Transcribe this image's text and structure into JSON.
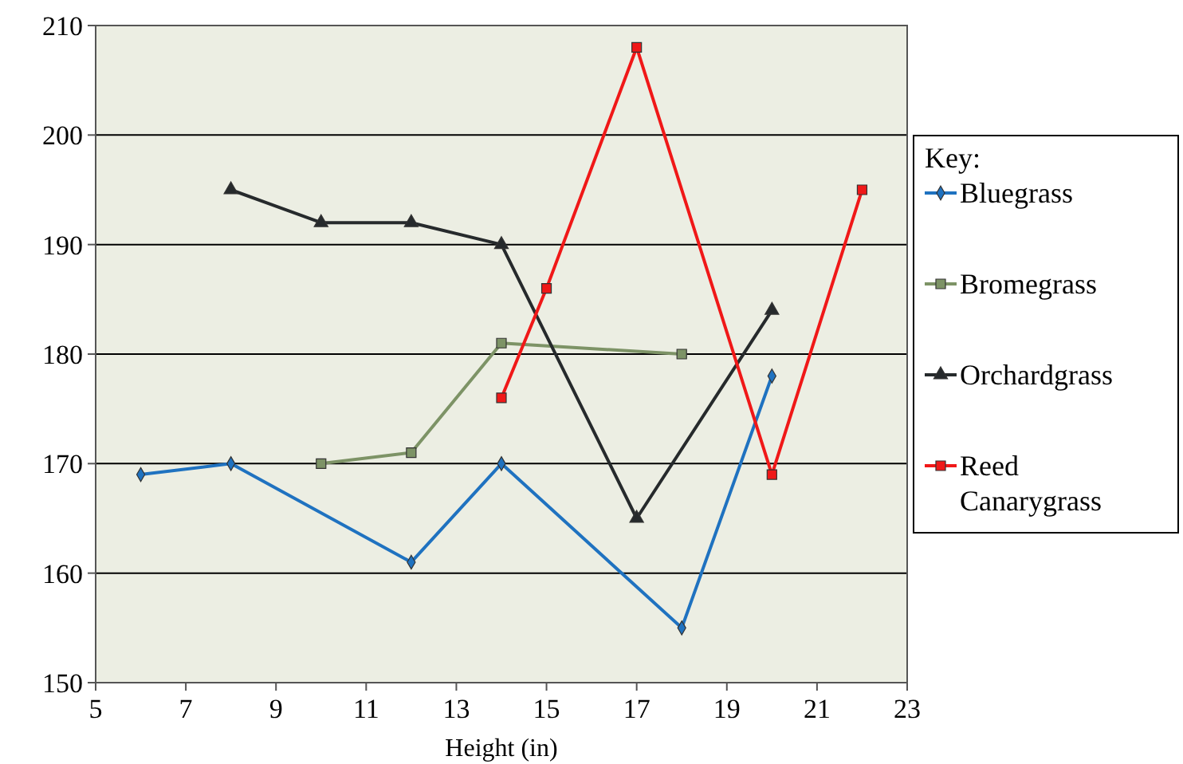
{
  "chart_data": {
    "type": "line",
    "xlabel": "Height (in)",
    "legend_title": "Key:",
    "legend": "right",
    "grid": "y",
    "xlim": [
      5,
      23
    ],
    "xticks": [
      5,
      7,
      9,
      11,
      13,
      15,
      17,
      19,
      21,
      23
    ],
    "ylim": [
      150,
      210
    ],
    "yticks": [
      150,
      160,
      170,
      180,
      190,
      200,
      210
    ],
    "series": [
      {
        "name": "Bluegrass",
        "color": "#1f72c0",
        "marker": "diamond",
        "x": [
          6,
          8,
          12,
          14,
          18,
          20
        ],
        "values": [
          169,
          170,
          161,
          170,
          155,
          178
        ]
      },
      {
        "name": "Bromegrass",
        "color": "#7d9366",
        "marker": "square",
        "x": [
          10,
          12,
          14,
          18
        ],
        "values": [
          170,
          171,
          181,
          180
        ]
      },
      {
        "name": "Orchardgrass",
        "color": "#262a2c",
        "marker": "triangle",
        "x": [
          8,
          10,
          12,
          14,
          17,
          20
        ],
        "values": [
          195,
          192,
          192,
          190,
          165,
          184
        ]
      },
      {
        "name": "Reed Canarygrass",
        "color": "#f01818",
        "marker": "square",
        "x": [
          14,
          15,
          17,
          20,
          22
        ],
        "values": [
          176,
          186,
          208,
          169,
          195
        ]
      }
    ]
  }
}
